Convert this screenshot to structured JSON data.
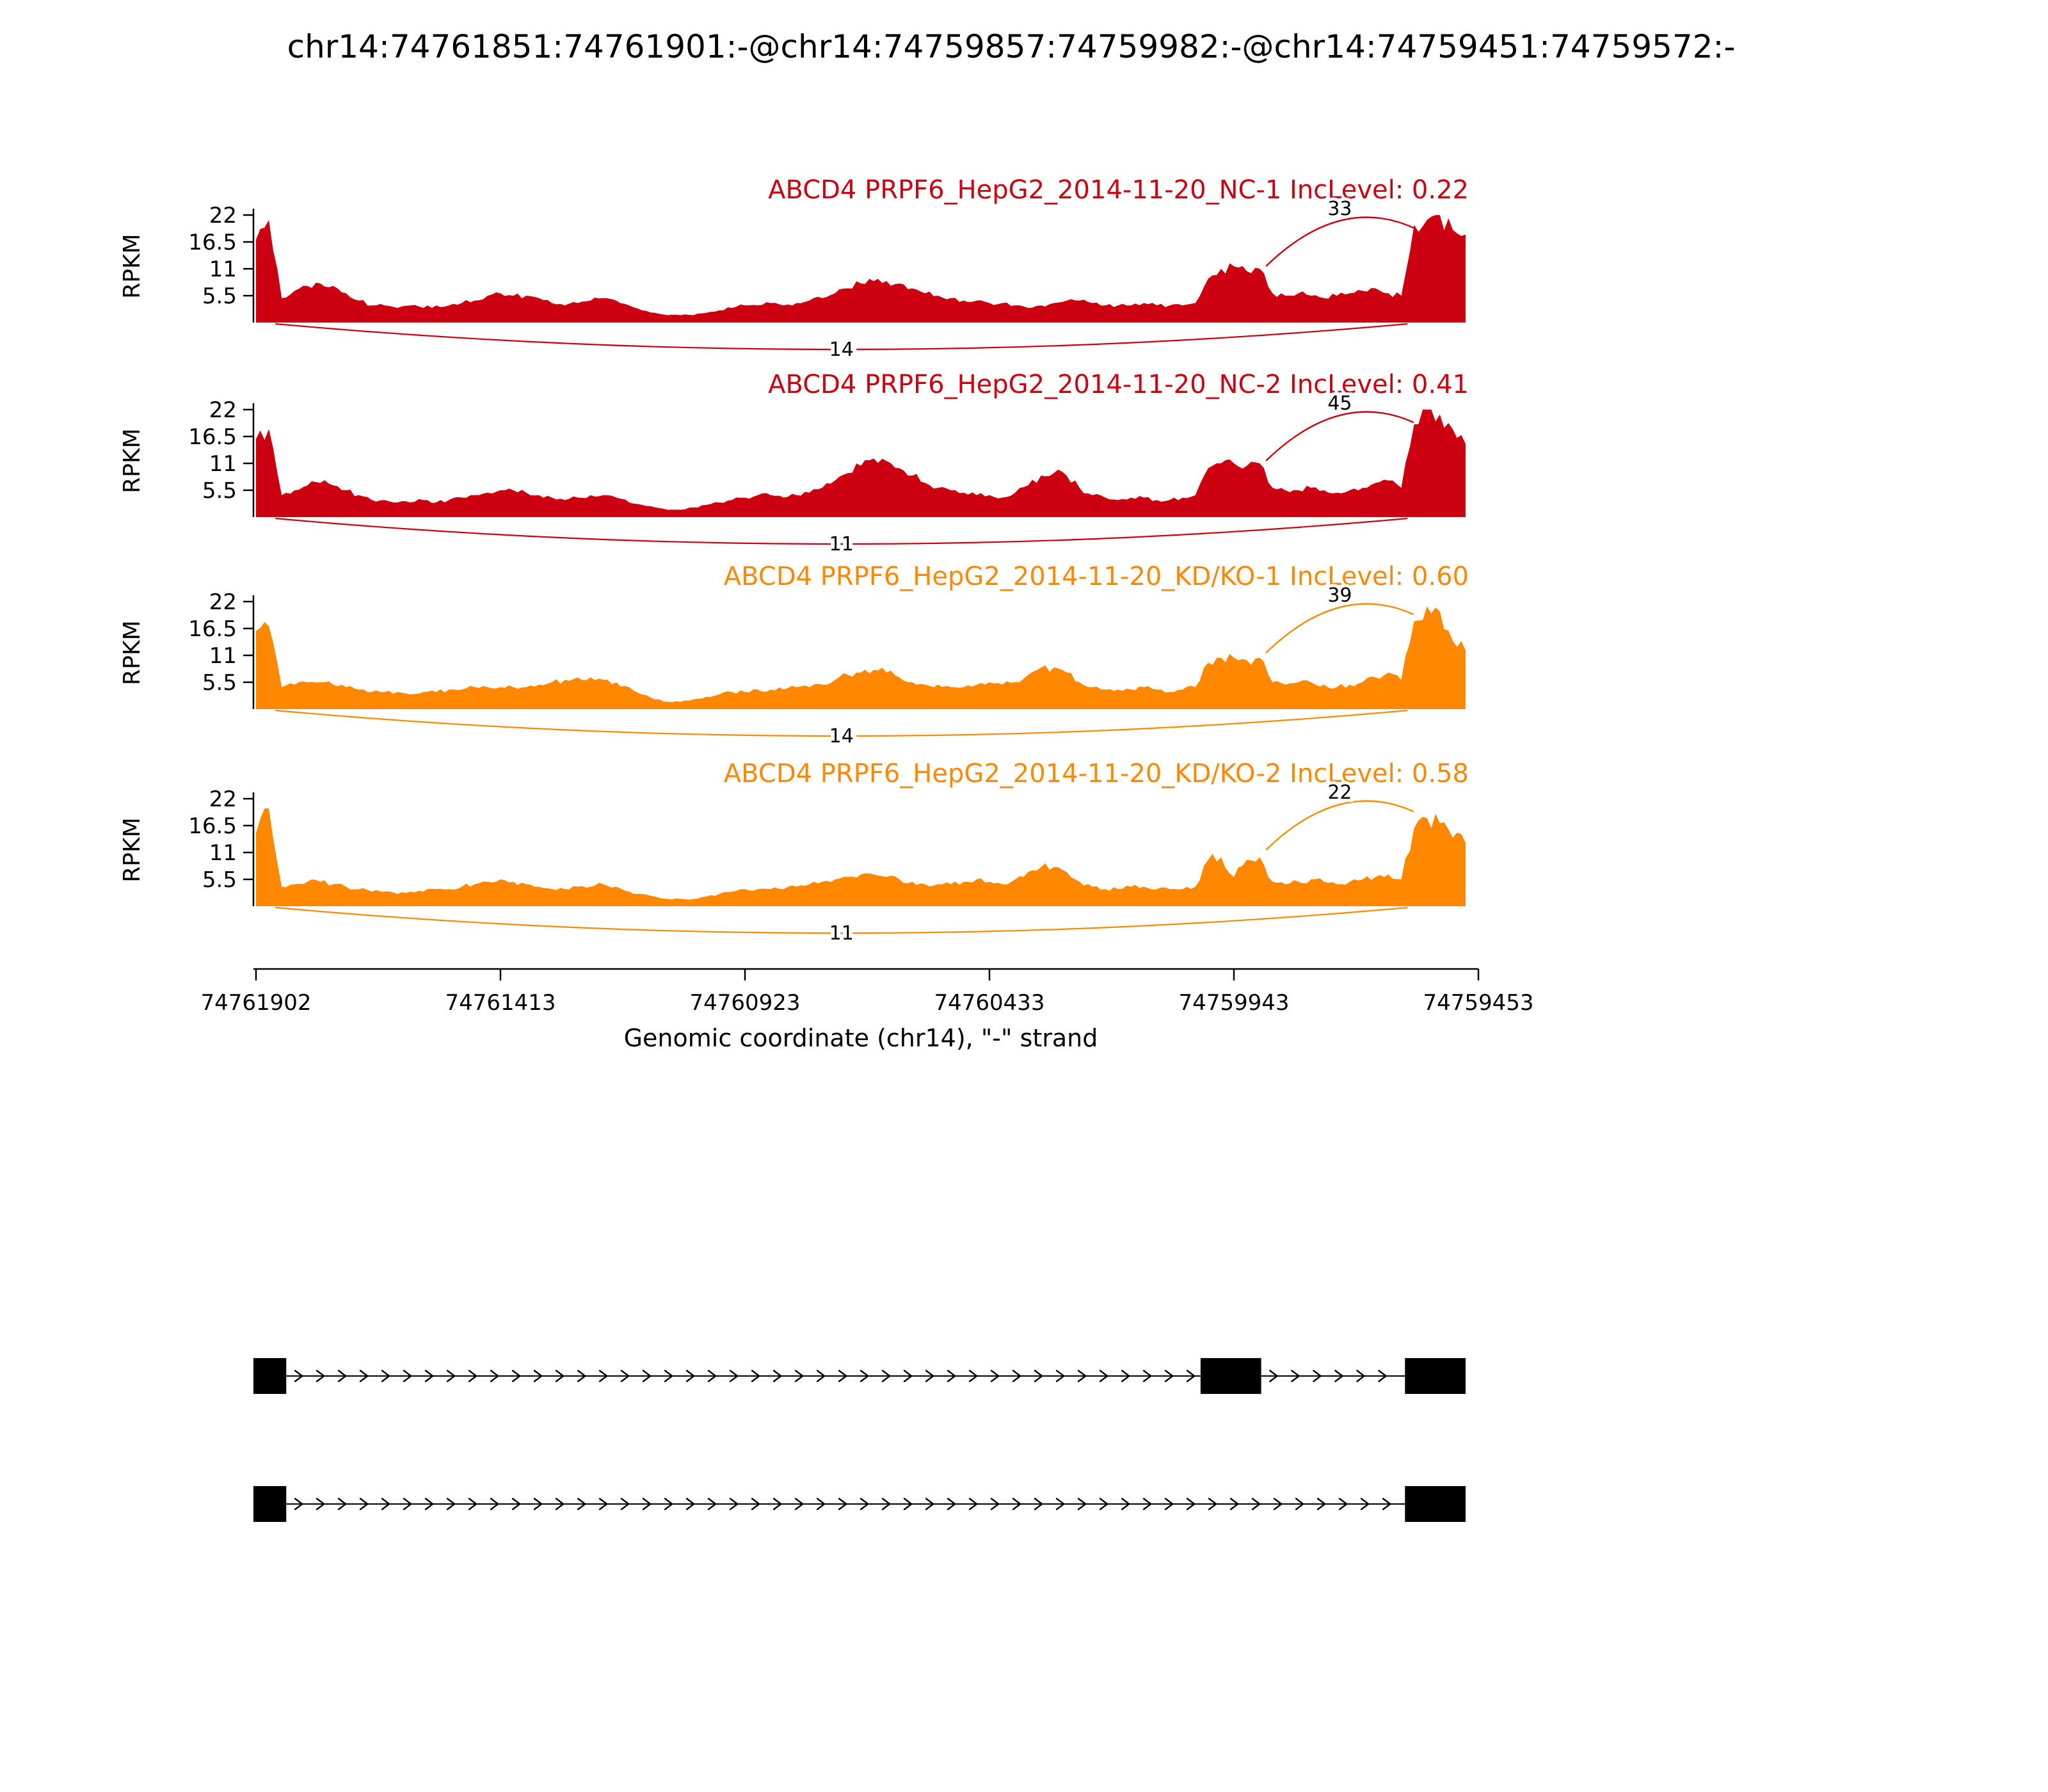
{
  "title": "chr14:74761851:74761901:-@chr14:74759857:74759982:-@chr14:74759451:74759572:-",
  "chart_data": {
    "type": "area",
    "subtype": "sashimi-plot",
    "xlabel": "Genomic coordinate (chr14), \"-\" strand",
    "ylabel": "RPKM",
    "ylim": [
      0,
      22
    ],
    "yticks": [
      5.5,
      11,
      16.5,
      22
    ],
    "xticks": [
      "74761902",
      "74761413",
      "74760923",
      "74760433",
      "74759943",
      "74759453"
    ],
    "junction_spans": {
      "inclusion_right": [
        0.835,
        0.957
      ],
      "skipping": [
        0.016,
        0.952
      ]
    },
    "tracks": [
      {
        "label": "ABCD4 PRPF6_HepG2_2014-11-20_NC-1 IncLevel: 0.22",
        "inc_level": 0.22,
        "color": "#CC0011",
        "junctions": {
          "inclusion": 33,
          "skipping": 14
        },
        "coverage": [
          17,
          21,
          5,
          6.5,
          7.5,
          8,
          7.5,
          6,
          4.5,
          3.5,
          3.5,
          3,
          3.5,
          3,
          3.5,
          3.5,
          4,
          4.5,
          5.5,
          6,
          5.5,
          5.5,
          5,
          4,
          3.5,
          4,
          4.5,
          5,
          4.5,
          3.5,
          2.5,
          2,
          1.5,
          1.5,
          1.5,
          2,
          2.5,
          3,
          3.5,
          3.5,
          4,
          3.5,
          4,
          4.5,
          5,
          6,
          7,
          8,
          8.5,
          8.5,
          8,
          7,
          6,
          5.5,
          5,
          4.5,
          4.5,
          4,
          4,
          3.5,
          3,
          3.5,
          4,
          4.5,
          4.5,
          4,
          3.5,
          3.5,
          3.5,
          4,
          3.5,
          3.5,
          3.5,
          4,
          9,
          11,
          11.5,
          10.5,
          11,
          6,
          5.5,
          6,
          5.5,
          5,
          5.5,
          6,
          6.5,
          7,
          6,
          5.5,
          20,
          21,
          22,
          19,
          18
        ]
      },
      {
        "label": "ABCD4 PRPF6_HepG2_2014-11-20_NC-2 IncLevel: 0.41",
        "inc_level": 0.41,
        "color": "#CC0011",
        "junctions": {
          "inclusion": 45,
          "skipping": 11
        },
        "coverage": [
          16,
          18,
          4.5,
          5.5,
          6.5,
          7,
          6.5,
          5.5,
          4.5,
          3.5,
          3.5,
          3,
          3,
          3.5,
          3,
          3.5,
          4,
          4.5,
          5,
          5.5,
          5.5,
          5,
          4.5,
          4,
          3.5,
          4,
          4.5,
          4.5,
          4,
          3,
          2.5,
          2,
          1.5,
          1.5,
          2,
          2.5,
          3,
          3.5,
          4,
          4.5,
          4.5,
          4,
          4.5,
          5,
          6,
          7.5,
          9,
          10.5,
          12,
          11.5,
          10,
          8.5,
          7,
          6,
          5.5,
          5,
          4.5,
          4.5,
          4,
          5,
          6.5,
          8.5,
          9,
          8.5,
          6,
          4.5,
          4,
          3.5,
          4,
          4,
          3.5,
          3.5,
          4,
          4.5,
          10,
          11,
          11,
          10.5,
          11,
          6,
          5.5,
          5.5,
          6,
          5.5,
          5,
          5.5,
          6,
          7,
          7.5,
          6,
          19,
          22,
          21,
          18,
          15
        ]
      },
      {
        "label": "ABCD4 PRPF6_HepG2_2014-11-20_KD/KO-1 IncLevel: 0.60",
        "inc_level": 0.6,
        "color": "#FF8800",
        "junctions": {
          "inclusion": 39,
          "skipping": 14
        },
        "coverage": [
          16,
          17,
          4.5,
          5,
          5.5,
          5.5,
          5,
          4.5,
          4,
          3.5,
          3.5,
          3.5,
          3,
          3.5,
          3.5,
          4,
          4,
          4.5,
          4.5,
          4.5,
          4.5,
          4.5,
          5,
          5.5,
          6,
          6.5,
          6.5,
          6,
          5.5,
          4.5,
          3,
          2,
          1.5,
          1.5,
          2,
          2.5,
          3,
          3.5,
          3.5,
          4,
          4,
          4,
          4.5,
          4.5,
          5,
          6,
          7,
          7.5,
          8,
          7.5,
          6.5,
          5.5,
          5,
          5,
          4.5,
          4.5,
          5,
          5.5,
          5,
          5.5,
          7,
          8.5,
          8.5,
          7.5,
          5.5,
          4.5,
          4,
          4,
          4,
          4.5,
          4,
          3.5,
          4,
          4.5,
          9.5,
          10.5,
          10.5,
          10,
          10.5,
          5.5,
          5,
          5.5,
          5.5,
          5,
          4.5,
          5,
          5.5,
          6.5,
          7.5,
          6,
          18,
          21,
          20,
          14,
          12
        ]
      },
      {
        "label": "ABCD4 PRPF6_HepG2_2014-11-20_KD/KO-2 IncLevel: 0.58",
        "inc_level": 0.58,
        "color": "#FF8800",
        "junctions": {
          "inclusion": 22,
          "skipping": 11
        },
        "coverage": [
          15,
          20,
          4,
          4.5,
          5,
          5,
          4.5,
          4,
          3.5,
          3,
          3,
          2.5,
          3,
          3,
          3.5,
          3.5,
          4,
          4.5,
          5,
          5.5,
          5,
          4.5,
          4,
          3.5,
          3.5,
          4,
          4,
          4.5,
          4,
          3,
          2.5,
          2,
          1.5,
          1.5,
          1.5,
          2,
          2.5,
          3,
          3.5,
          3.5,
          3.5,
          3.5,
          4,
          4.5,
          5,
          5.5,
          6,
          6.5,
          6.5,
          6,
          5.5,
          5,
          4.5,
          4.5,
          4.5,
          5,
          5.5,
          5,
          4.5,
          5.5,
          7,
          8,
          8,
          7,
          5,
          4,
          3.5,
          3.5,
          4,
          4,
          3.5,
          3.5,
          3.5,
          4,
          9.5,
          10,
          6,
          9.5,
          10,
          5,
          4.5,
          5,
          5.5,
          5,
          4.5,
          5,
          5.5,
          6,
          6.5,
          5.5,
          16,
          18,
          17,
          14,
          13
        ]
      }
    ],
    "transcripts": [
      {
        "exons": [
          [
            0,
            0.025
          ],
          [
            0.783,
            0.831
          ],
          [
            0.952,
            1.0
          ]
        ]
      },
      {
        "exons": [
          [
            0,
            0.025
          ],
          [
            0.952,
            1.0
          ]
        ]
      }
    ]
  }
}
